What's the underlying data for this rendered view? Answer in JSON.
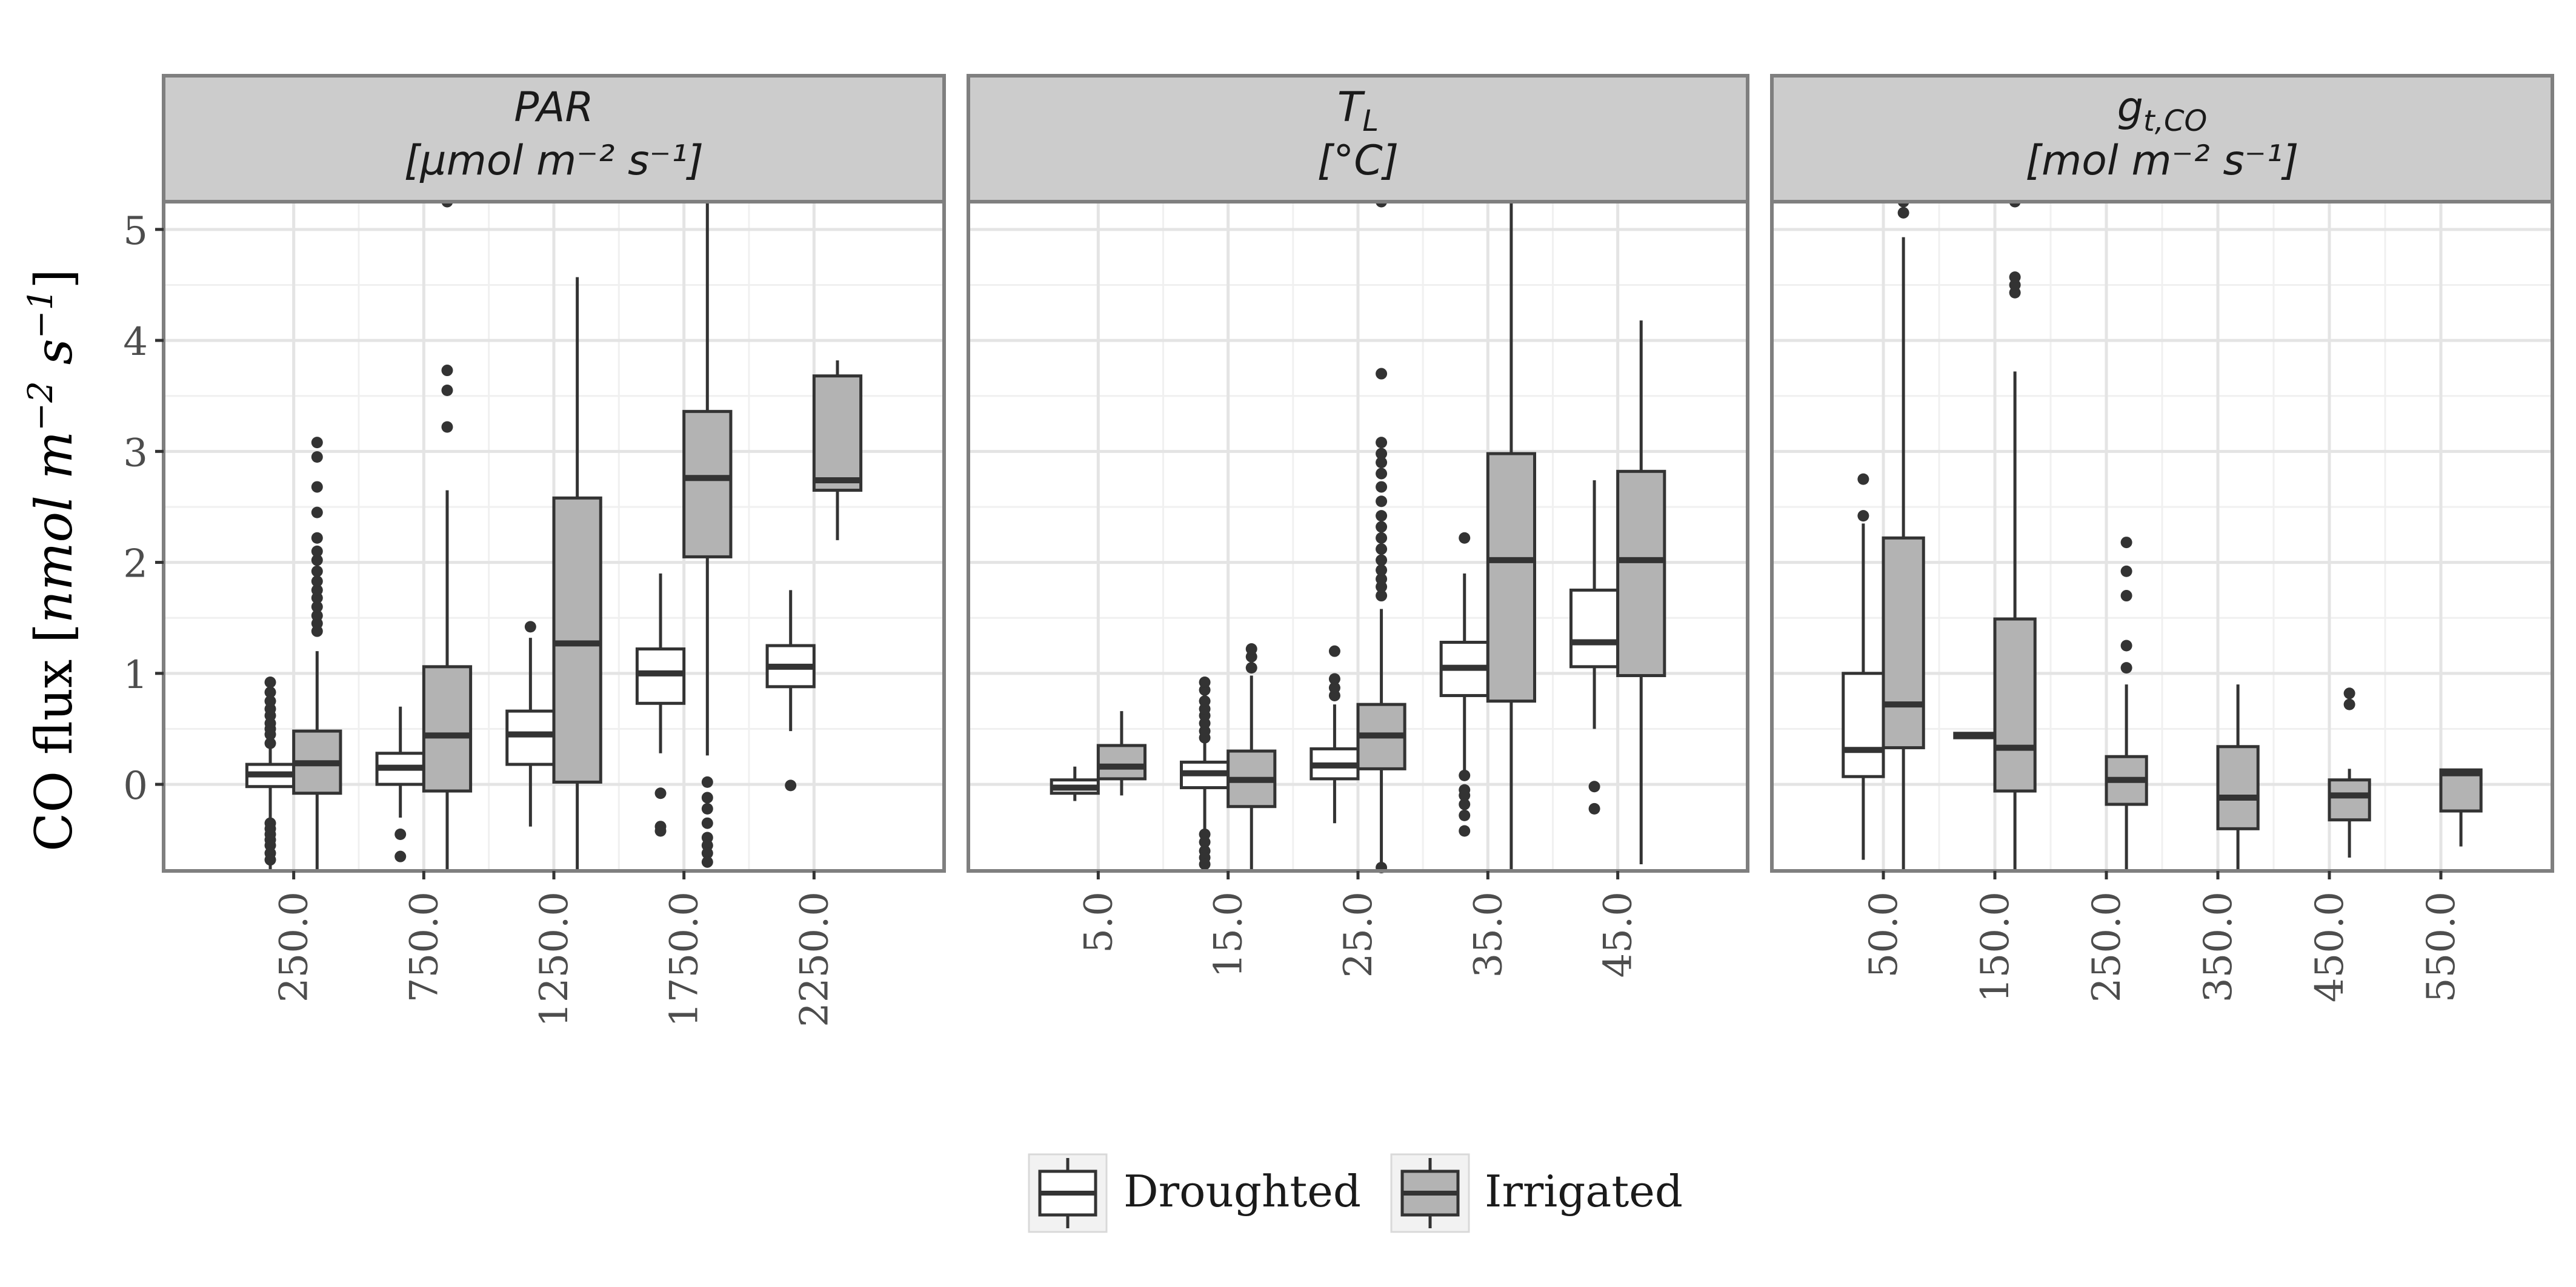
{
  "chart_data": {
    "type": "box",
    "ylabel_prefix": "CO flux [",
    "ylabel_math": "nmol m",
    "ylabel_exp1": "−2",
    "ylabel_mid": " s",
    "ylabel_exp2": "−1",
    "ylabel_suffix": "]",
    "ylim": [
      -0.78,
      5.25
    ],
    "yticks": [
      0,
      1,
      2,
      3,
      4,
      5
    ],
    "grid": true,
    "legend_position": "bottom",
    "series": [
      {
        "name": "Droughted",
        "fill": "#ffffff"
      },
      {
        "name": "Irrigated",
        "fill": "#b3b3b3"
      }
    ],
    "panels": [
      {
        "strip_line1": "PAR",
        "strip_line2": "[μmol m⁻² s⁻¹]",
        "categories": [
          "250.0",
          "750.0",
          "1250.0",
          "1750.0",
          "2250.0"
        ],
        "boxes": {
          "Droughted": [
            {
              "lower": -0.78,
              "q1": -0.02,
              "median": 0.09,
              "q3": 0.18,
              "upper": 0.35,
              "outliers": [
                0.37,
                0.45,
                0.5,
                0.55,
                0.62,
                0.68,
                0.75,
                0.83,
                0.92,
                -0.35,
                -0.4,
                -0.45,
                -0.5,
                -0.55,
                -0.62,
                -0.68
              ]
            },
            {
              "lower": -0.3,
              "q1": 0.0,
              "median": 0.15,
              "q3": 0.28,
              "upper": 0.7,
              "outliers": [
                -0.45,
                -0.65
              ]
            },
            {
              "lower": -0.38,
              "q1": 0.18,
              "median": 0.45,
              "q3": 0.66,
              "upper": 1.32,
              "outliers": [
                1.42
              ]
            },
            {
              "lower": 0.28,
              "q1": 0.73,
              "median": 1.0,
              "q3": 1.22,
              "upper": 1.9,
              "outliers": [
                -0.08,
                -0.38,
                -0.42
              ]
            },
            {
              "lower": 0.48,
              "q1": 0.88,
              "median": 1.06,
              "q3": 1.25,
              "upper": 1.75,
              "outliers": [
                -0.01
              ]
            }
          ],
          "Irrigated": [
            {
              "lower": -0.78,
              "q1": -0.08,
              "median": 0.19,
              "q3": 0.48,
              "upper": 1.2,
              "outliers": [
                1.38,
                1.45,
                1.52,
                1.6,
                1.68,
                1.75,
                1.83,
                1.92,
                2.02,
                2.1,
                2.22,
                2.45,
                2.68,
                2.95,
                3.08
              ]
            },
            {
              "lower": -0.78,
              "q1": -0.06,
              "median": 0.44,
              "q3": 1.06,
              "upper": 2.65,
              "outliers": [
                3.22,
                3.55,
                3.73,
                5.25
              ]
            },
            {
              "lower": -0.78,
              "q1": 0.02,
              "median": 1.27,
              "q3": 2.58,
              "upper": 4.57,
              "outliers": []
            },
            {
              "lower": 0.26,
              "q1": 2.05,
              "median": 2.76,
              "q3": 3.36,
              "upper": 5.25,
              "outliers": [
                0.02,
                -0.12,
                -0.22,
                -0.35,
                -0.48,
                -0.55,
                -0.62,
                -0.7
              ]
            },
            {
              "lower": 2.2,
              "q1": 2.65,
              "median": 2.74,
              "q3": 3.68,
              "upper": 3.82,
              "outliers": []
            }
          ]
        }
      },
      {
        "strip_line1": "T",
        "strip_sub1": "L",
        "strip_line2": "[°C]",
        "categories": [
          "5.0",
          "15.0",
          "25.0",
          "35.0",
          "45.0"
        ],
        "boxes": {
          "Droughted": [
            {
              "lower": -0.15,
              "q1": -0.08,
              "median": -0.03,
              "q3": 0.04,
              "upper": 0.16,
              "outliers": []
            },
            {
              "lower": -0.78,
              "q1": -0.03,
              "median": 0.1,
              "q3": 0.2,
              "upper": 0.38,
              "outliers": [
                0.42,
                0.48,
                0.55,
                0.62,
                0.68,
                0.75,
                0.85,
                0.92,
                -0.45,
                -0.52,
                -0.6,
                -0.66,
                -0.72
              ]
            },
            {
              "lower": -0.35,
              "q1": 0.05,
              "median": 0.17,
              "q3": 0.32,
              "upper": 0.72,
              "outliers": [
                0.8,
                0.87,
                0.95,
                1.2
              ]
            },
            {
              "lower": 0.12,
              "q1": 0.8,
              "median": 1.05,
              "q3": 1.28,
              "upper": 1.9,
              "outliers": [
                2.22,
                0.08,
                -0.05,
                -0.1,
                -0.18,
                -0.28,
                -0.42
              ]
            },
            {
              "lower": 0.5,
              "q1": 1.06,
              "median": 1.28,
              "q3": 1.75,
              "upper": 2.74,
              "outliers": [
                -0.02,
                -0.22
              ]
            }
          ],
          "Irrigated": [
            {
              "lower": -0.1,
              "q1": 0.05,
              "median": 0.16,
              "q3": 0.35,
              "upper": 0.66,
              "outliers": []
            },
            {
              "lower": -0.78,
              "q1": -0.2,
              "median": 0.04,
              "q3": 0.3,
              "upper": 0.98,
              "outliers": [
                1.05,
                1.15,
                1.22
              ]
            },
            {
              "lower": -0.78,
              "q1": 0.14,
              "median": 0.44,
              "q3": 0.72,
              "upper": 1.58,
              "outliers": [
                1.7,
                1.78,
                1.85,
                1.93,
                2.02,
                2.12,
                2.22,
                2.32,
                2.42,
                2.55,
                2.68,
                2.8,
                2.9,
                2.98,
                3.08,
                3.7,
                5.25,
                -0.75
              ]
            },
            {
              "lower": -0.78,
              "q1": 0.75,
              "median": 2.02,
              "q3": 2.98,
              "upper": 5.25,
              "outliers": []
            },
            {
              "lower": -0.72,
              "q1": 0.98,
              "median": 2.02,
              "q3": 2.82,
              "upper": 4.18,
              "outliers": []
            }
          ]
        }
      },
      {
        "strip_line1": "g",
        "strip_sub1": "t,CO",
        "strip_line2": "[mol m⁻² s⁻¹]",
        "categories": [
          "50.0",
          "150.0",
          "250.0",
          "350.0",
          "450.0",
          "550.0"
        ],
        "boxes": {
          "Droughted": [
            {
              "lower": -0.68,
              "q1": 0.07,
              "median": 0.31,
              "q3": 1.0,
              "upper": 2.35,
              "outliers": [
                2.42,
                2.75
              ]
            },
            {
              "lower": 0.42,
              "q1": 0.42,
              "median": 0.44,
              "q3": 0.46,
              "upper": 0.46,
              "outliers": []
            },
            null,
            null,
            null,
            null
          ],
          "Irrigated": [
            {
              "lower": -0.78,
              "q1": 0.33,
              "median": 0.72,
              "q3": 2.22,
              "upper": 4.93,
              "outliers": [
                5.15,
                5.25
              ]
            },
            {
              "lower": -0.78,
              "q1": -0.06,
              "median": 0.33,
              "q3": 1.49,
              "upper": 3.72,
              "outliers": [
                4.43,
                4.5,
                4.57,
                5.25
              ]
            },
            {
              "lower": -0.78,
              "q1": -0.18,
              "median": 0.04,
              "q3": 0.25,
              "upper": 0.9,
              "outliers": [
                1.05,
                1.25,
                1.7,
                1.92,
                2.18
              ]
            },
            {
              "lower": -0.78,
              "q1": -0.4,
              "median": -0.12,
              "q3": 0.34,
              "upper": 0.9,
              "outliers": []
            },
            {
              "lower": -0.66,
              "q1": -0.32,
              "median": -0.1,
              "q3": 0.04,
              "upper": 0.14,
              "outliers": [
                0.72,
                0.82
              ]
            },
            {
              "lower": -0.56,
              "q1": -0.24,
              "median": 0.1,
              "q3": 0.13,
              "upper": 0.13,
              "outliers": []
            }
          ]
        }
      }
    ]
  }
}
